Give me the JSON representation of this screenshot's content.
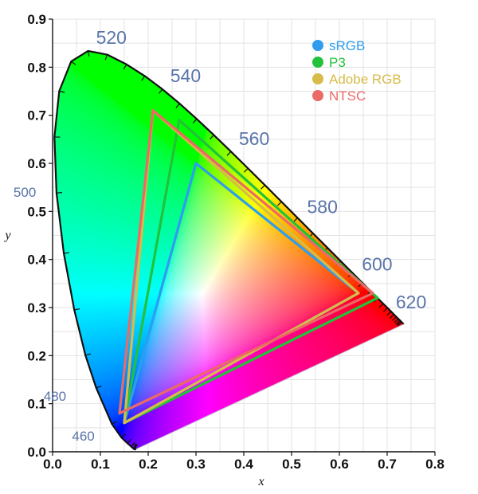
{
  "chart_data": {
    "type": "scatter",
    "xlabel": "x",
    "ylabel": "y",
    "xlim": [
      0.0,
      0.8
    ],
    "ylim": [
      0.0,
      0.9
    ],
    "x_ticks": [
      "0.0",
      "0.1",
      "0.2",
      "0.3",
      "0.4",
      "0.5",
      "0.6",
      "0.7",
      "0.8"
    ],
    "y_ticks": [
      "0.0",
      "0.1",
      "0.2",
      "0.3",
      "0.4",
      "0.5",
      "0.6",
      "0.7",
      "0.8",
      "0.9"
    ],
    "grid": true,
    "legend_position": "top-right",
    "spectral_locus": [
      [
        0.1741,
        0.005
      ],
      [
        0.1738,
        0.0049
      ],
      [
        0.1736,
        0.0049
      ],
      [
        0.1726,
        0.0048
      ],
      [
        0.1714,
        0.0051
      ],
      [
        0.1689,
        0.0069
      ],
      [
        0.1644,
        0.0109
      ],
      [
        0.1566,
        0.0177
      ],
      [
        0.144,
        0.0297
      ],
      [
        0.1241,
        0.0578
      ],
      [
        0.0913,
        0.1327
      ],
      [
        0.0687,
        0.2007
      ],
      [
        0.0454,
        0.295
      ],
      [
        0.0235,
        0.4127
      ],
      [
        0.0082,
        0.5384
      ],
      [
        0.0039,
        0.6548
      ],
      [
        0.0139,
        0.7502
      ],
      [
        0.0389,
        0.812
      ],
      [
        0.0743,
        0.8338
      ],
      [
        0.1142,
        0.8262
      ],
      [
        0.1547,
        0.8059
      ],
      [
        0.1929,
        0.7816
      ],
      [
        0.2296,
        0.7543
      ],
      [
        0.2658,
        0.7243
      ],
      [
        0.3016,
        0.6923
      ],
      [
        0.3373,
        0.6589
      ],
      [
        0.3731,
        0.6245
      ],
      [
        0.4087,
        0.5896
      ],
      [
        0.4441,
        0.5547
      ],
      [
        0.4788,
        0.5202
      ],
      [
        0.5125,
        0.4866
      ],
      [
        0.5448,
        0.4544
      ],
      [
        0.5752,
        0.4242
      ],
      [
        0.6029,
        0.3965
      ],
      [
        0.627,
        0.3725
      ],
      [
        0.6482,
        0.3514
      ],
      [
        0.6658,
        0.334
      ],
      [
        0.6801,
        0.3197
      ],
      [
        0.6915,
        0.3083
      ],
      [
        0.7006,
        0.2993
      ],
      [
        0.7079,
        0.292
      ],
      [
        0.714,
        0.2859
      ],
      [
        0.719,
        0.2809
      ],
      [
        0.723,
        0.277
      ],
      [
        0.726,
        0.274
      ],
      [
        0.7283,
        0.2717
      ],
      [
        0.73,
        0.27
      ],
      [
        0.7347,
        0.2653
      ]
    ],
    "wavelength_labels": [
      {
        "label": "460",
        "x": 0.144,
        "y": 0.0297
      },
      {
        "label": "480",
        "x": 0.0913,
        "y": 0.1327
      },
      {
        "label": "500",
        "x": 0.0082,
        "y": 0.5384
      },
      {
        "label": "520",
        "x": 0.0743,
        "y": 0.8338
      },
      {
        "label": "540",
        "x": 0.2296,
        "y": 0.7543
      },
      {
        "label": "560",
        "x": 0.3731,
        "y": 0.6245
      },
      {
        "label": "580",
        "x": 0.5125,
        "y": 0.4866
      },
      {
        "label": "600",
        "x": 0.627,
        "y": 0.3725
      },
      {
        "label": "620",
        "x": 0.6915,
        "y": 0.3083
      }
    ],
    "series": [
      {
        "name": "sRGB",
        "color": "#2e9df0",
        "points": [
          [
            0.64,
            0.33
          ],
          [
            0.3,
            0.6
          ],
          [
            0.15,
            0.06
          ]
        ]
      },
      {
        "name": "P3",
        "color": "#22c23a",
        "points": [
          [
            0.68,
            0.32
          ],
          [
            0.265,
            0.69
          ],
          [
            0.15,
            0.06
          ]
        ]
      },
      {
        "name": "Adobe RGB",
        "color": "#d8bb48",
        "points": [
          [
            0.64,
            0.33
          ],
          [
            0.21,
            0.71
          ],
          [
            0.15,
            0.06
          ]
        ]
      },
      {
        "name": "NTSC",
        "color": "#ea6a66",
        "points": [
          [
            0.67,
            0.33
          ],
          [
            0.21,
            0.71
          ],
          [
            0.14,
            0.08
          ]
        ]
      }
    ]
  }
}
